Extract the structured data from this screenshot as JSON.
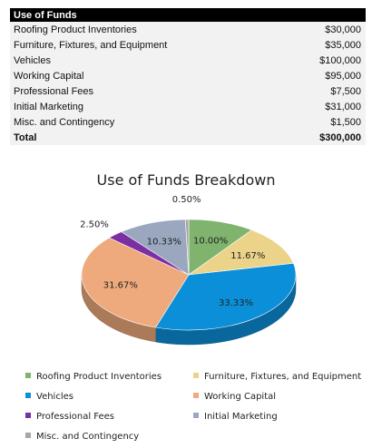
{
  "table": {
    "header": "Use of Funds",
    "rows": [
      {
        "label": "Roofing Product Inventories",
        "amount": "$30,000"
      },
      {
        "label": "Furniture, Fixtures, and Equipment",
        "amount": "$35,000"
      },
      {
        "label": "Vehicles",
        "amount": "$100,000"
      },
      {
        "label": "Working Capital",
        "amount": "$95,000"
      },
      {
        "label": "Professional Fees",
        "amount": "$7,500"
      },
      {
        "label": "Initial Marketing",
        "amount": "$31,000"
      },
      {
        "label": "Misc. and Contingency",
        "amount": "$1,500"
      }
    ],
    "total_label": "Total",
    "total_amount": "$300,000"
  },
  "chart_data": {
    "type": "pie",
    "title": "Use of Funds Breakdown",
    "legend_position": "bottom",
    "slices": [
      {
        "name": "Roofing Product Inventories",
        "value": 30000,
        "percent": 10.0,
        "label": "10.00%",
        "color": "#7fb36e"
      },
      {
        "name": "Furniture, Fixtures, and Equipment",
        "value": 35000,
        "percent": 11.67,
        "label": "11.67%",
        "color": "#ecd38a"
      },
      {
        "name": "Vehicles",
        "value": 100000,
        "percent": 33.33,
        "label": "33.33%",
        "color": "#0b8fd8"
      },
      {
        "name": "Working Capital",
        "value": 95000,
        "percent": 31.67,
        "label": "31.67%",
        "color": "#eeaa7c"
      },
      {
        "name": "Professional Fees",
        "value": 7500,
        "percent": 2.5,
        "label": "2.50%",
        "color": "#7b2fa3"
      },
      {
        "name": "Initial Marketing",
        "value": 31000,
        "percent": 10.33,
        "label": "10.33%",
        "color": "#9aa7bf"
      },
      {
        "name": "Misc. and Contingency",
        "value": 1500,
        "percent": 0.5,
        "label": "0.50%",
        "color": "#a7a7a7"
      }
    ]
  }
}
